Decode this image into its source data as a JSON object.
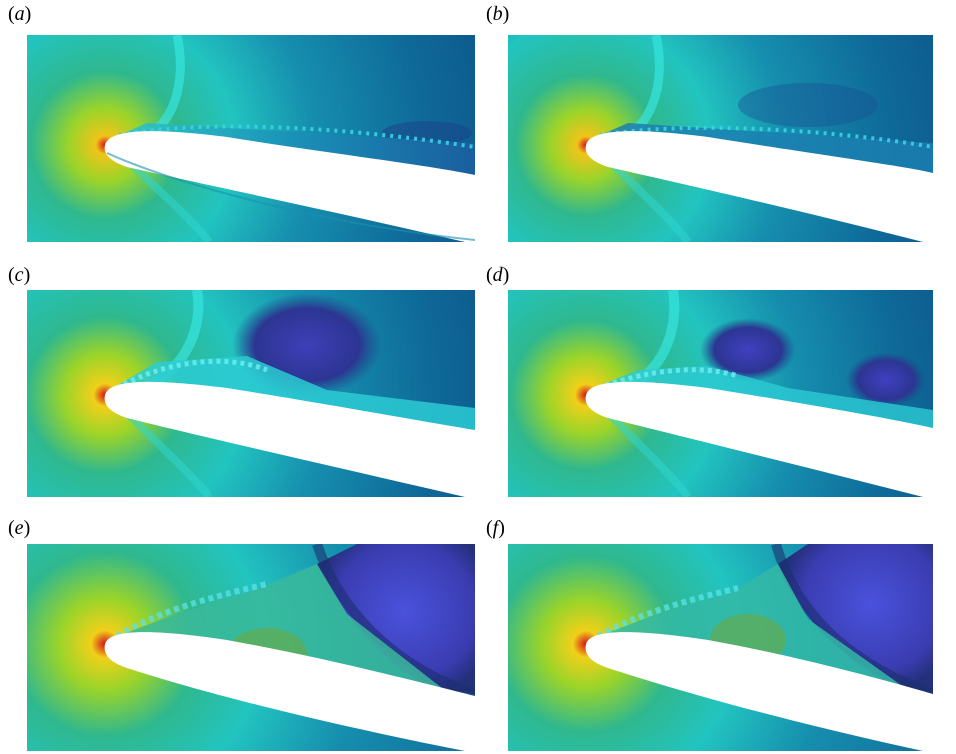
{
  "figure": {
    "panels": [
      {
        "id": "a",
        "label_open": "(",
        "letter": "a",
        "label_close": ")"
      },
      {
        "id": "b",
        "label_open": "(",
        "letter": "b",
        "label_close": ")"
      },
      {
        "id": "c",
        "label_open": "(",
        "letter": "c",
        "label_close": ")"
      },
      {
        "id": "d",
        "label_open": "(",
        "letter": "d",
        "label_close": ")"
      },
      {
        "id": "e",
        "label_open": "(",
        "letter": "e",
        "label_close": ")"
      },
      {
        "id": "f",
        "label_open": "(",
        "letter": "f",
        "label_close": ")"
      }
    ],
    "colors": {
      "stagnation": "#d4141a",
      "high": "#f2e21a",
      "mid_high": "#3fb04c",
      "mid": "#22b8b0",
      "light_band": "#32e0d8",
      "low": "#0e6e98",
      "very_low": "#1a4f8a",
      "vortex": "#4650d8",
      "airfoil": "#ffffff"
    }
  }
}
